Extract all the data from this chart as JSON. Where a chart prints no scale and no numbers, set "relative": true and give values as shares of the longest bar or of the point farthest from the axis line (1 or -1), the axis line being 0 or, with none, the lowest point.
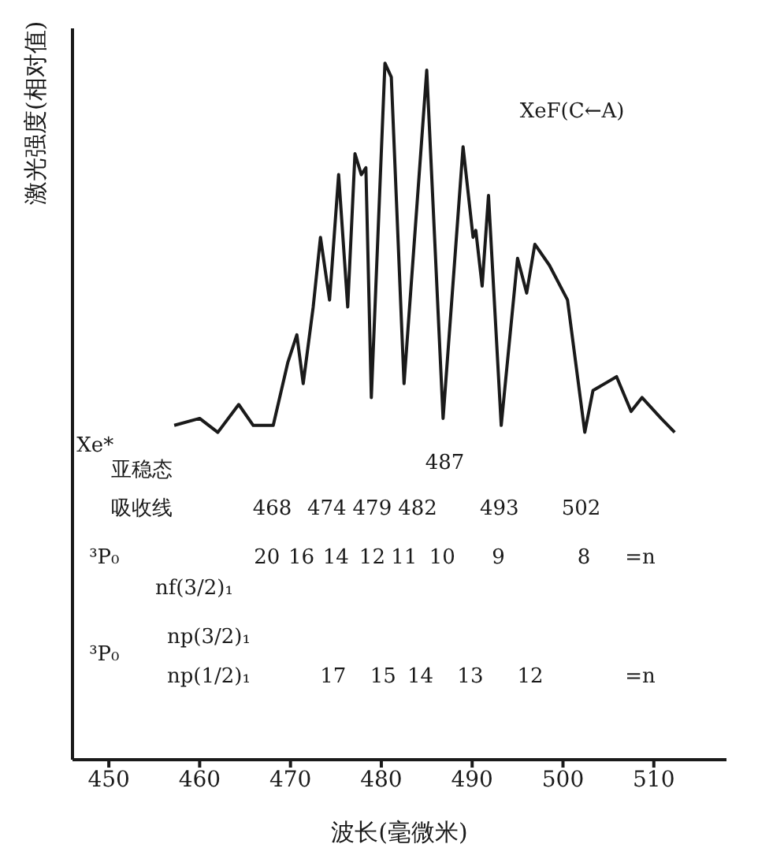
{
  "chart_data": {
    "type": "line",
    "relative": true,
    "xlabel": "波长(毫微米)",
    "ylabel": "激光强度(相对值)",
    "xlim": [
      446,
      518
    ],
    "xticks": [
      450,
      460,
      470,
      480,
      490,
      500,
      510
    ],
    "series": [
      {
        "color": "#1a1a1a",
        "x": [
          457.2,
          460,
          462,
          464.3,
          465.9,
          468.1,
          469.7,
          470.7,
          471.4,
          472.5,
          473.3,
          474.3,
          475.3,
          476.3,
          477.1,
          477.8,
          478.3,
          478.9,
          480.4,
          481.1,
          482.5,
          485,
          486.8,
          489,
          490.1,
          490.4,
          491.1,
          491.8,
          493.2,
          495,
          496,
          496.9,
          498.5,
          500.5,
          502.4,
          503.3,
          505.9,
          507.5,
          508.7,
          510.8,
          512.3
        ],
        "values": [
          0.48,
          0.49,
          0.47,
          0.51,
          0.48,
          0.48,
          0.57,
          0.61,
          0.54,
          0.65,
          0.75,
          0.66,
          0.84,
          0.65,
          0.87,
          0.84,
          0.85,
          0.52,
          1,
          0.98,
          0.54,
          0.99,
          0.49,
          0.88,
          0.75,
          0.76,
          0.68,
          0.81,
          0.48,
          0.72,
          0.67,
          0.74,
          0.71,
          0.66,
          0.47,
          0.53,
          0.55,
          0.5,
          0.52,
          0.49,
          0.47
        ]
      }
    ],
    "annotations": [
      "XeF(C←A)",
      "Xe*",
      "亚稳态",
      "吸收线",
      "487",
      "468",
      "474",
      "479",
      "482",
      "493",
      "502",
      "³P₀",
      "20",
      "16",
      "14",
      "12",
      "11",
      "10",
      "9",
      "8",
      "=n",
      "nf(3/2)₁",
      "³P₀",
      "np(3/2)₁",
      "np(1/2)₁",
      "17",
      "15",
      "14",
      "13",
      "12",
      "=n"
    ]
  }
}
